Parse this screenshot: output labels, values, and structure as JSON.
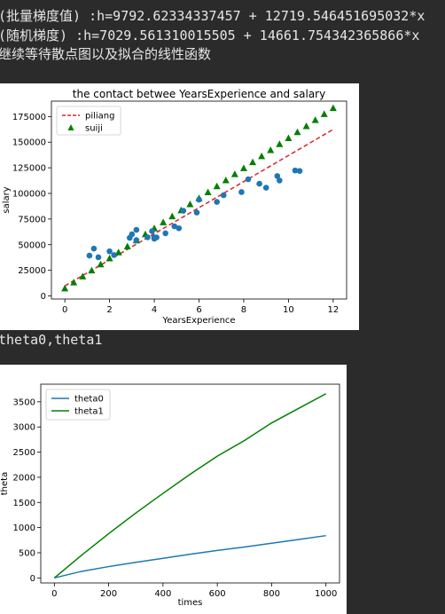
{
  "output": {
    "line1": "(批量梯度值) :h=9792.62334337457 + 12719.546451695032*x",
    "line2": "(随机梯度) :h=7029.561310015505 + 14661.754342365866*x",
    "line3": "继续等待散点图以及拟合的线性函数",
    "line4": "theta0,theta1"
  },
  "chart_data": [
    {
      "type": "scatter",
      "title": "the contact betwee YearsExperience and  salary",
      "xlabel": "YearsExperience",
      "ylabel": "salary",
      "xlim": [
        -0.6,
        12.6
      ],
      "ylim": [
        -3000,
        190000
      ],
      "xticks": [
        0,
        2,
        4,
        6,
        8,
        10,
        12
      ],
      "yticks": [
        0,
        25000,
        50000,
        75000,
        100000,
        125000,
        150000,
        175000
      ],
      "legend_position": "top-left",
      "series": [
        {
          "name": "piliang",
          "kind": "dashed-line",
          "color": "#d62728",
          "points": [
            [
              0,
              9792.6
            ],
            [
              12,
              162427.2
            ]
          ]
        },
        {
          "name": "suiji",
          "kind": "triangle-markers",
          "color": "#008000",
          "x": [
            0,
            0.4,
            0.8,
            1.2,
            1.6,
            2,
            2.4,
            2.8,
            3.2,
            3.6,
            4,
            4.4,
            4.8,
            5.2,
            5.6,
            6,
            6.4,
            6.8,
            7.2,
            7.6,
            8,
            8.4,
            8.8,
            9.2,
            9.6,
            10,
            10.4,
            10.8,
            11.2,
            11.6,
            12
          ],
          "y": [
            7030,
            12895,
            18760,
            24624,
            30489,
            36354,
            42218,
            48083,
            53948,
            59812,
            65677,
            71541,
            77406,
            83271,
            89135,
            95000,
            100865,
            106729,
            112594,
            118459,
            124323,
            130188,
            136053,
            141917,
            147782,
            153647,
            159511,
            165376,
            171241,
            177105,
            182970
          ]
        },
        {
          "name": "",
          "kind": "circle-markers",
          "color": "#1f77b4",
          "x": [
            1.1,
            1.3,
            1.5,
            2.0,
            2.2,
            2.9,
            3.0,
            3.2,
            3.2,
            3.7,
            3.9,
            4.0,
            4.0,
            4.1,
            4.5,
            4.9,
            5.1,
            5.3,
            5.9,
            6.0,
            6.8,
            7.1,
            7.9,
            8.2,
            8.7,
            9.0,
            9.5,
            9.6,
            10.3,
            10.5
          ],
          "y": [
            39343,
            46205,
            37731,
            43525,
            39891,
            56642,
            60150,
            54445,
            64445,
            57189,
            63218,
            55794,
            56957,
            57081,
            61111,
            67938,
            66029,
            83088,
            81363,
            93940,
            91738,
            98273,
            101302,
            113812,
            109431,
            105582,
            116969,
            112635,
            122391,
            121872
          ]
        }
      ]
    },
    {
      "type": "line",
      "title": "",
      "xlabel": "times",
      "ylabel": "theta",
      "xlim": [
        -50,
        1050
      ],
      "ylim": [
        -100,
        3850
      ],
      "xticks": [
        0,
        200,
        400,
        600,
        800,
        1000
      ],
      "yticks": [
        0,
        500,
        1000,
        1500,
        2000,
        2500,
        3000,
        3500
      ],
      "legend_position": "top-left",
      "series": [
        {
          "name": "theta0",
          "color": "#1f77b4",
          "x": [
            0,
            100,
            200,
            300,
            400,
            500,
            600,
            700,
            800,
            900,
            1000
          ],
          "y": [
            0,
            130,
            225,
            310,
            390,
            470,
            545,
            615,
            690,
            765,
            840
          ]
        },
        {
          "name": "theta1",
          "color": "#008000",
          "x": [
            0,
            100,
            200,
            300,
            400,
            500,
            600,
            700,
            800,
            900,
            1000
          ],
          "y": [
            0,
            450,
            880,
            1290,
            1680,
            2060,
            2420,
            2730,
            3080,
            3370,
            3660
          ]
        }
      ]
    }
  ]
}
